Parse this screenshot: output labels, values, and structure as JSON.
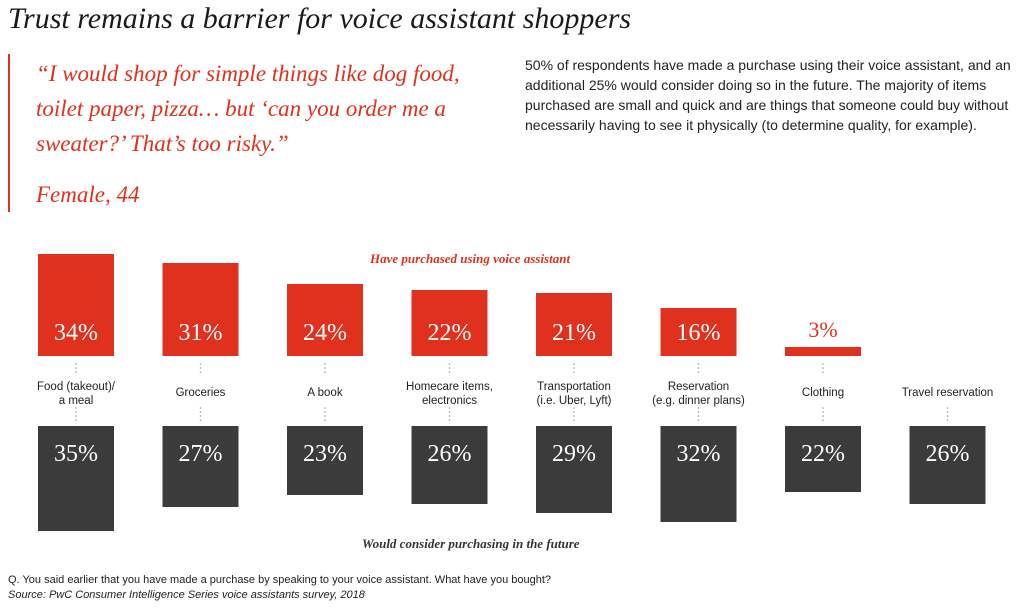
{
  "title": "Trust remains a barrier for voice assistant shoppers",
  "quote": "“I would shop for simple things like dog food, toilet paper, pizza… but ‘can you order me a sweater?’ That’s too risky.”",
  "attribution": "Female, 44",
  "summary": "50% of respondents have made a purchase using their voice assistant, and an additional 25% would consider doing so in the future. The majority of items purchased are small and quick and are things that someone could buy without necessarily having to see it physically (to determine quality, for example).",
  "footnote": "Q. You said earlier that you have made a purchase by speaking to your voice assistant. What have you bought?",
  "source": "Source: PwC Consumer Intelligence Series voice assistants survey, 2018",
  "colors": {
    "purchased": "#e0301e",
    "consider": "#3b3b3b"
  },
  "chart_data": {
    "type": "bar",
    "categories": [
      [
        "Food (takeout)/",
        "a meal"
      ],
      [
        "Groceries"
      ],
      [
        "A book"
      ],
      [
        "Homecare items,",
        "electronics"
      ],
      [
        "Transportation",
        "(i.e. Uber, Lyft)"
      ],
      [
        "Reservation",
        "(e.g. dinner plans)"
      ],
      [
        "Clothing"
      ],
      [
        "Travel reservation"
      ]
    ],
    "series": [
      {
        "name": "Have purchased using voice assistant",
        "values": [
          34,
          31,
          24,
          22,
          21,
          16,
          3,
          null
        ],
        "labels": [
          "34%",
          "31%",
          "24%",
          "22%",
          "21%",
          "16%",
          "3%",
          ""
        ]
      },
      {
        "name": "Would consider purchasing in the future",
        "values": [
          35,
          27,
          23,
          26,
          29,
          32,
          22,
          26
        ],
        "labels": [
          "35%",
          "27%",
          "23%",
          "26%",
          "29%",
          "32%",
          "22%",
          "26%"
        ]
      }
    ],
    "unit": "%"
  }
}
